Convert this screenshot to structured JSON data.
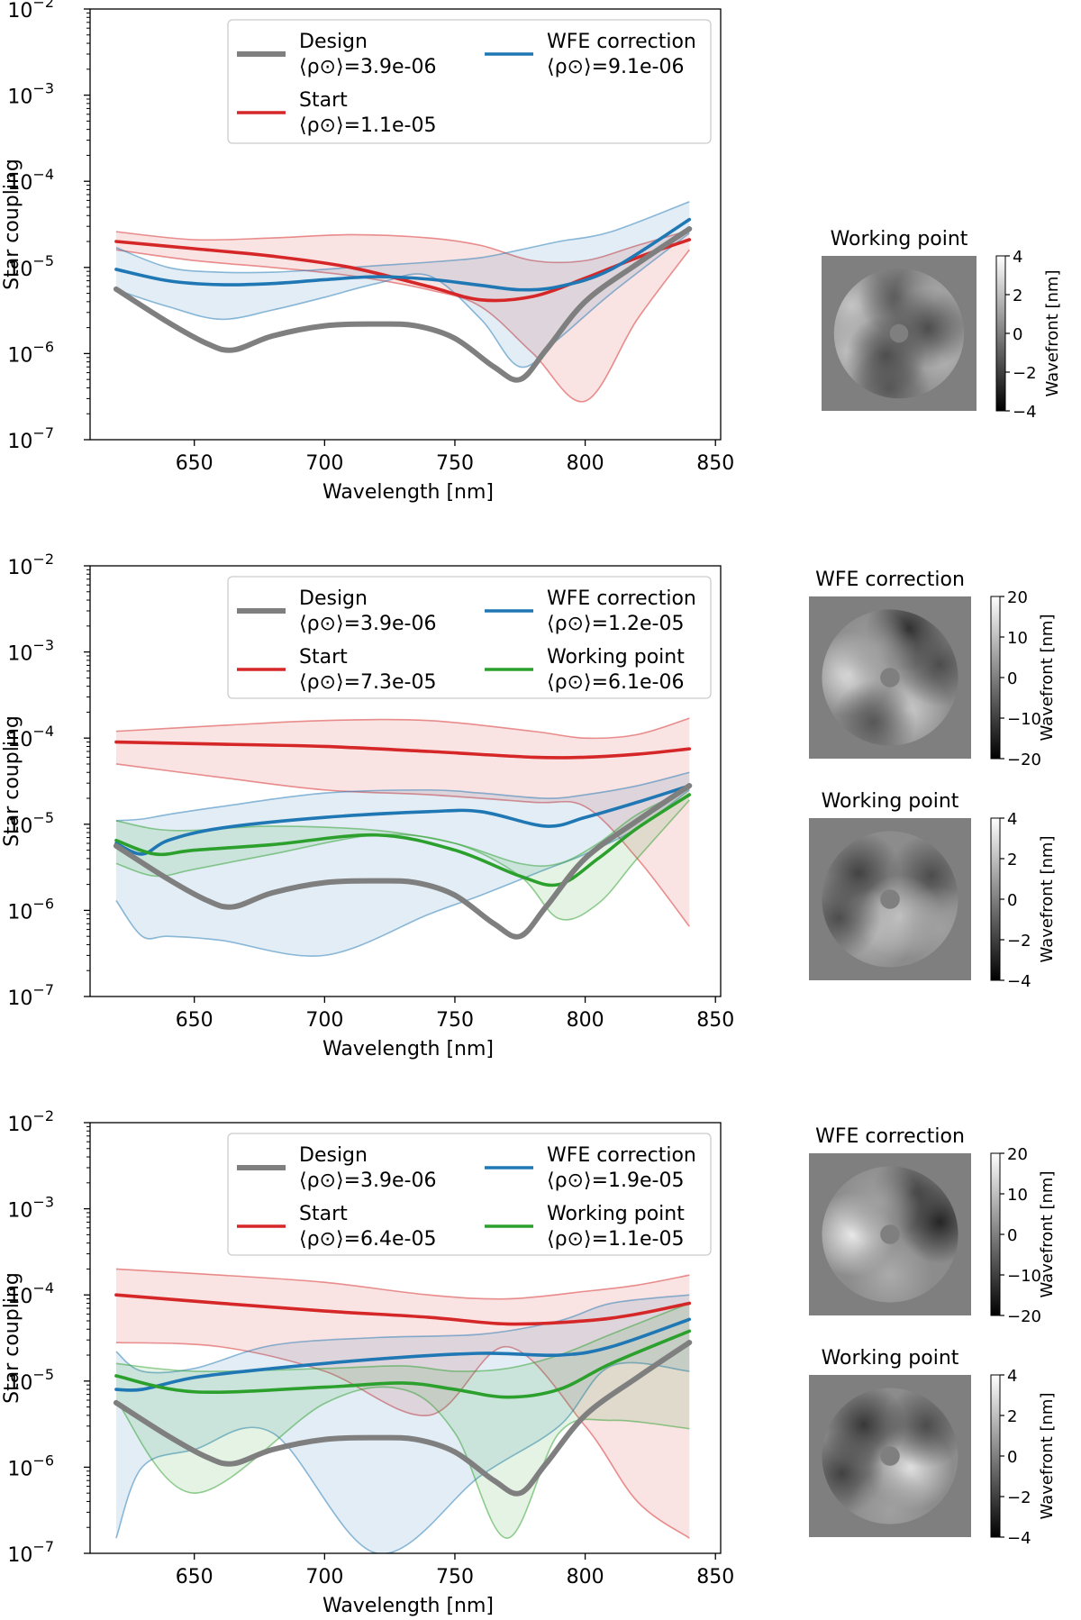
{
  "chart_data": [
    {
      "type": "line",
      "xlabel": "Wavelength [nm]",
      "ylabel": "Star coupling",
      "xlim": [
        610,
        852
      ],
      "ylim": [
        1e-07,
        0.01
      ],
      "yscale": "log",
      "xticks": [
        "650",
        "700",
        "750",
        "800",
        "850"
      ],
      "yticks": [
        "10",
        "10",
        "10",
        "10",
        "10",
        "10"
      ],
      "ytick_exponents": [
        "−7",
        "−6",
        "−5",
        "−4",
        "−3",
        "−2"
      ],
      "legend_position": "top-center",
      "series": [
        {
          "name": "Design",
          "stat": "⟨ρ⊙⟩=3.9e-06",
          "color": "#7f7f7f",
          "x": [
            620,
            640,
            655,
            665,
            680,
            700,
            720,
            735,
            750,
            765,
            775,
            785,
            800,
            820,
            840
          ],
          "y": [
            5.6e-06,
            2.3e-06,
            1.3e-06,
            1.1e-06,
            1.6e-06,
            2.1e-06,
            2.2e-06,
            2.1e-06,
            1.5e-06,
            7e-07,
            5e-07,
            1.1e-06,
            4e-06,
            1.1e-05,
            2.8e-05
          ]
        },
        {
          "name": "WFE correction",
          "stat": "⟨ρ⊙⟩=9.1e-06",
          "color": "#1f77b4",
          "x": [
            620,
            640,
            660,
            680,
            700,
            720,
            740,
            760,
            775,
            790,
            810,
            840
          ],
          "y": [
            9.5e-06,
            7e-06,
            6.3e-06,
            6.5e-06,
            7.2e-06,
            7.8e-06,
            7.3e-06,
            6.2e-06,
            5.5e-06,
            6e-06,
            9.5e-06,
            3.6e-05
          ],
          "band_upper": [
            1.7e-05,
            1e-05,
            8.8e-06,
            8.8e-06,
            9.5e-06,
            1.05e-05,
            1.15e-05,
            1.3e-05,
            1.6e-05,
            2e-05,
            2.6e-05,
            5.8e-05
          ],
          "band_lower": [
            5.5e-06,
            3.5e-06,
            2.5e-06,
            3.2e-06,
            4.5e-06,
            6.5e-06,
            8e-06,
            2.5e-06,
            7e-07,
            1.5e-06,
            5e-06,
            2.5e-05
          ]
        },
        {
          "name": "Start",
          "stat": "⟨ρ⊙⟩=1.1e-05",
          "color": "#d62728",
          "x": [
            620,
            650,
            680,
            710,
            740,
            760,
            780,
            800,
            820,
            840
          ],
          "y": [
            2e-05,
            1.65e-05,
            1.35e-05,
            1e-05,
            6e-06,
            4.2e-06,
            4.6e-06,
            7.5e-06,
            1.3e-05,
            2.1e-05
          ],
          "band_upper": [
            2.6e-05,
            2.1e-05,
            2.2e-05,
            2.4e-05,
            2.2e-05,
            1.8e-05,
            1.2e-05,
            1.2e-05,
            1.8e-05,
            2.7e-05
          ],
          "band_lower": [
            1.6e-05,
            1.2e-05,
            1e-05,
            8e-06,
            5.5e-06,
            3.5e-06,
            1e-06,
            2.8e-07,
            2.5e-06,
            1.6e-05
          ]
        }
      ]
    },
    {
      "type": "line",
      "xlabel": "Wavelength [nm]",
      "ylabel": "Star coupling",
      "xlim": [
        610,
        852
      ],
      "ylim": [
        1e-07,
        0.01
      ],
      "yscale": "log",
      "xticks": [
        "650",
        "700",
        "750",
        "800",
        "850"
      ],
      "yticks": [
        "10",
        "10",
        "10",
        "10",
        "10",
        "10"
      ],
      "ytick_exponents": [
        "−7",
        "−6",
        "−5",
        "−4",
        "−3",
        "−2"
      ],
      "legend_position": "top-center",
      "series": [
        {
          "name": "Design",
          "stat": "⟨ρ⊙⟩=3.9e-06",
          "color": "#7f7f7f",
          "x": [
            620,
            640,
            655,
            665,
            680,
            700,
            720,
            735,
            750,
            765,
            775,
            785,
            800,
            820,
            840
          ],
          "y": [
            5.6e-06,
            2.3e-06,
            1.3e-06,
            1.1e-06,
            1.6e-06,
            2.1e-06,
            2.2e-06,
            2.1e-06,
            1.5e-06,
            7e-07,
            5e-07,
            1.1e-06,
            4e-06,
            1.1e-05,
            2.8e-05
          ]
        },
        {
          "name": "WFE correction",
          "stat": "⟨ρ⊙⟩=1.2e-05",
          "color": "#1f77b4",
          "x": [
            620,
            630,
            640,
            660,
            700,
            740,
            760,
            785,
            800,
            820,
            840
          ],
          "y": [
            6e-06,
            4.5e-06,
            6.5e-06,
            9e-06,
            1.2e-05,
            1.4e-05,
            1.4e-05,
            9.5e-06,
            1.2e-05,
            1.8e-05,
            2.8e-05
          ],
          "band_upper": [
            1.1e-05,
            1.15e-05,
            1.3e-05,
            1.6e-05,
            2.3e-05,
            2.5e-05,
            2.3e-05,
            2e-05,
            2.2e-05,
            2.8e-05,
            4e-05
          ],
          "band_lower": [
            1.3e-06,
            5e-07,
            5e-07,
            4.5e-07,
            3e-07,
            9e-07,
            1.5e-06,
            3e-06,
            4.5e-06,
            9e-06,
            2.5e-05
          ]
        },
        {
          "name": "Start",
          "stat": "⟨ρ⊙⟩=7.3e-05",
          "color": "#d62728",
          "x": [
            620,
            660,
            700,
            740,
            780,
            800,
            820,
            840
          ],
          "y": [
            9e-05,
            8.5e-05,
            8e-05,
            7e-05,
            6e-05,
            6e-05,
            6.5e-05,
            7.5e-05
          ],
          "band_upper": [
            0.00012,
            0.00014,
            0.00016,
            0.00016,
            0.00012,
            0.0001,
            0.00011,
            0.00017
          ],
          "band_lower": [
            5e-05,
            3.5e-05,
            2.5e-05,
            2.2e-05,
            1.8e-05,
            1.6e-05,
            4e-06,
            6.5e-07
          ]
        },
        {
          "name": "Working point",
          "stat": "⟨ρ⊙⟩=6.1e-06",
          "color": "#2ca02c",
          "x": [
            620,
            635,
            650,
            680,
            720,
            750,
            775,
            790,
            805,
            820,
            840
          ],
          "y": [
            6.5e-06,
            4.5e-06,
            5e-06,
            5.8e-06,
            7.5e-06,
            5e-06,
            2.5e-06,
            2e-06,
            4e-06,
            9e-06,
            2.2e-05
          ],
          "band_upper": [
            1.1e-05,
            8.8e-06,
            8.5e-06,
            9.5e-06,
            8.5e-06,
            6e-06,
            3.5e-06,
            3.5e-06,
            6e-06,
            1.3e-05,
            2.6e-05
          ],
          "band_lower": [
            3.5e-06,
            2.5e-06,
            3e-06,
            4.5e-06,
            7.5e-06,
            6e-06,
            2.5e-06,
            8e-07,
            1.2e-06,
            4e-06,
            1.9e-05
          ]
        }
      ]
    },
    {
      "type": "line",
      "xlabel": "Wavelength [nm]",
      "ylabel": "Star coupling",
      "xlim": [
        610,
        852
      ],
      "ylim": [
        1e-07,
        0.01
      ],
      "yscale": "log",
      "xticks": [
        "650",
        "700",
        "750",
        "800",
        "850"
      ],
      "yticks": [
        "10",
        "10",
        "10",
        "10",
        "10",
        "10"
      ],
      "ytick_exponents": [
        "−7",
        "−6",
        "−5",
        "−4",
        "−3",
        "−2"
      ],
      "legend_position": "top-center",
      "series": [
        {
          "name": "Design",
          "stat": "⟨ρ⊙⟩=3.9e-06",
          "color": "#7f7f7f",
          "x": [
            620,
            640,
            655,
            665,
            680,
            700,
            720,
            735,
            750,
            765,
            775,
            785,
            800,
            820,
            840
          ],
          "y": [
            5.6e-06,
            2.3e-06,
            1.3e-06,
            1.1e-06,
            1.6e-06,
            2.1e-06,
            2.2e-06,
            2.1e-06,
            1.5e-06,
            7e-07,
            5e-07,
            1.1e-06,
            4e-06,
            1.1e-05,
            2.8e-05
          ]
        },
        {
          "name": "WFE correction",
          "stat": "⟨ρ⊙⟩=1.9e-05",
          "color": "#1f77b4",
          "x": [
            620,
            630,
            650,
            680,
            720,
            760,
            790,
            810,
            840
          ],
          "y": [
            8e-06,
            8e-06,
            1.1e-05,
            1.4e-05,
            1.8e-05,
            2.1e-05,
            2e-05,
            2.5e-05,
            5.2e-05
          ],
          "band_upper": [
            2.2e-05,
            1.3e-05,
            1.4e-05,
            2.6e-05,
            3.2e-05,
            3.5e-05,
            5e-05,
            8e-05,
            0.0001
          ],
          "band_lower": [
            1.5e-07,
            1e-06,
            1.6e-06,
            2.5e-06,
            1e-07,
            8e-07,
            3e-06,
            1.5e-05,
            1.3e-05
          ]
        },
        {
          "name": "Start",
          "stat": "⟨ρ⊙⟩=6.4e-05",
          "color": "#d62728",
          "x": [
            620,
            660,
            700,
            740,
            770,
            800,
            820,
            840
          ],
          "y": [
            0.0001,
            8e-05,
            6.5e-05,
            5.5e-05,
            4.6e-05,
            5e-05,
            6e-05,
            8e-05
          ],
          "band_upper": [
            0.0002,
            0.00017,
            0.00014,
            0.0001,
            9e-05,
            0.00011,
            0.00013,
            0.00017
          ],
          "band_lower": [
            2.8e-05,
            2.5e-05,
            1.3e-05,
            4e-06,
            2.5e-05,
            3e-06,
            4e-07,
            1.5e-07
          ]
        },
        {
          "name": "Working point",
          "stat": "⟨ρ⊙⟩=1.1e-05",
          "color": "#2ca02c",
          "x": [
            620,
            650,
            700,
            730,
            750,
            770,
            790,
            810,
            840
          ],
          "y": [
            1.15e-05,
            7.5e-06,
            8.5e-06,
            9.5e-06,
            8e-06,
            6.5e-06,
            8e-06,
            1.6e-05,
            3.8e-05
          ],
          "band_upper": [
            1.6e-05,
            1.3e-05,
            1.4e-05,
            1.5e-05,
            1.3e-05,
            1.4e-05,
            2e-05,
            3.5e-05,
            8e-05
          ],
          "band_lower": [
            6e-06,
            5e-07,
            5.5e-06,
            8e-06,
            2.5e-06,
            1.5e-07,
            2.5e-06,
            3.5e-06,
            2.8e-06
          ]
        }
      ]
    }
  ],
  "wavefront_maps": [
    {
      "panel": 1,
      "maps": [
        {
          "title": "Working point",
          "colorbar_label": "Wavefront [nm]",
          "ticks": [
            "4",
            "2",
            "0",
            "−2",
            "−4"
          ],
          "blobs": [
            {
              "r": 0.82,
              "a": 200,
              "v": 0.6
            },
            {
              "r": 0.85,
              "a": 150,
              "v": 0.65
            },
            {
              "r": 0.75,
              "a": 330,
              "v": 0.5
            },
            {
              "r": 0.55,
              "a": 90,
              "v": -0.4
            },
            {
              "r": 0.75,
              "a": 45,
              "v": 0.4
            },
            {
              "r": 0.4,
              "a": 240,
              "v": -0.5
            },
            {
              "r": 0.45,
              "a": 10,
              "v": -0.5
            },
            {
              "r": 0.85,
              "a": 260,
              "v": -0.4
            }
          ]
        }
      ]
    },
    {
      "panel": 2,
      "maps": [
        {
          "title": "WFE correction",
          "colorbar_label": "Wavefront [nm]",
          "ticks": [
            "20",
            "10",
            "0",
            "−10",
            "−20"
          ],
          "blobs": [
            {
              "r": 0.6,
              "a": 175,
              "v": 0.9
            },
            {
              "r": 0.55,
              "a": 300,
              "v": 0.7
            },
            {
              "r": 0.75,
              "a": 70,
              "v": -0.8
            },
            {
              "r": 0.75,
              "a": 15,
              "v": -0.5
            },
            {
              "r": 0.7,
              "a": 250,
              "v": -0.4
            },
            {
              "r": 0.45,
              "a": 120,
              "v": 0.3
            }
          ]
        },
        {
          "title": "Working point",
          "colorbar_label": "Wavefront [nm]",
          "ticks": [
            "4",
            "2",
            "0",
            "−2",
            "−4"
          ],
          "blobs": [
            {
              "r": 0.6,
              "a": 140,
              "v": -0.6
            },
            {
              "r": 0.7,
              "a": 30,
              "v": -0.5
            },
            {
              "r": 0.55,
              "a": 240,
              "v": 0.5
            },
            {
              "r": 0.3,
              "a": 300,
              "v": 0.6
            },
            {
              "r": 0.8,
              "a": 200,
              "v": -0.5
            },
            {
              "r": 0.85,
              "a": 330,
              "v": 0.3
            }
          ]
        }
      ]
    },
    {
      "panel": 3,
      "maps": [
        {
          "title": "WFE correction",
          "colorbar_label": "Wavefront [nm]",
          "ticks": [
            "20",
            "10",
            "0",
            "−10",
            "−20"
          ],
          "blobs": [
            {
              "r": 0.55,
              "a": 180,
              "v": 1.0
            },
            {
              "r": 0.75,
              "a": 15,
              "v": -0.9
            },
            {
              "r": 0.7,
              "a": 60,
              "v": -0.6
            },
            {
              "r": 0.6,
              "a": 270,
              "v": 0.4
            },
            {
              "r": 0.5,
              "a": 110,
              "v": 0.3
            }
          ]
        },
        {
          "title": "Working point",
          "colorbar_label": "Wavefront [nm]",
          "ticks": [
            "4",
            "2",
            "0",
            "−2",
            "−4"
          ],
          "blobs": [
            {
              "r": 0.35,
              "a": 330,
              "v": 0.9
            },
            {
              "r": 0.6,
              "a": 130,
              "v": -0.7
            },
            {
              "r": 0.75,
              "a": 200,
              "v": -0.6
            },
            {
              "r": 0.7,
              "a": 40,
              "v": -0.5
            },
            {
              "r": 0.8,
              "a": 270,
              "v": 0.3
            }
          ]
        }
      ]
    }
  ]
}
